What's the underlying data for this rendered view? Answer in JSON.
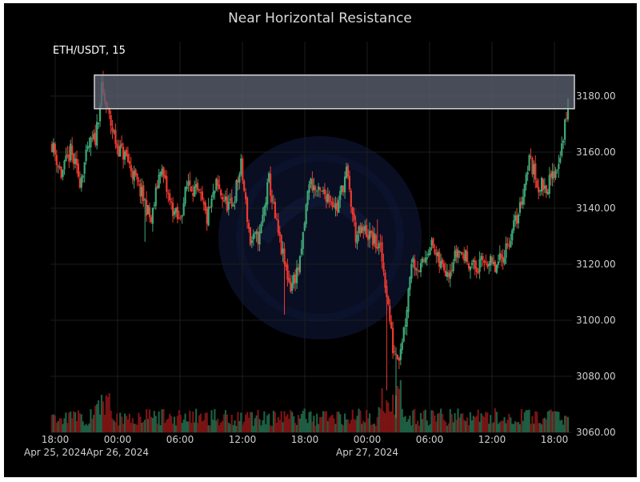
{
  "chart_data": {
    "type": "candlestick",
    "title": "Near Horizontal Resistance",
    "symbol_label": "ETH/USDT, 15",
    "y_axis": {
      "position": "right",
      "ylim": [
        3060,
        3200
      ],
      "ticks": [
        "3060.00",
        "3080.00",
        "3100.00",
        "3120.00",
        "3140.00",
        "3160.00",
        "3180.00"
      ]
    },
    "x_axis": {
      "tick_labels": [
        {
          "time": "18:00",
          "date": "Apr 25, 2024"
        },
        {
          "time": "00:00",
          "date": "Apr 26, 2024"
        },
        {
          "time": "06:00",
          "date": ""
        },
        {
          "time": "12:00",
          "date": ""
        },
        {
          "time": "18:00",
          "date": ""
        },
        {
          "time": "00:00",
          "date": "Apr 27, 2024"
        },
        {
          "time": "06:00",
          "date": ""
        },
        {
          "time": "12:00",
          "date": ""
        },
        {
          "time": "18:00",
          "date": ""
        }
      ]
    },
    "resistance_zone": {
      "low": 3175.5,
      "high": 3187.5,
      "fill": "#5a5f6e",
      "stroke": "#d0d0d0"
    },
    "price_path": [
      {
        "t": 0,
        "p": 3163
      },
      {
        "t": 6,
        "p": 3152
      },
      {
        "t": 12,
        "p": 3160
      },
      {
        "t": 18,
        "p": 3150
      },
      {
        "t": 24,
        "p": 3162
      },
      {
        "t": 28,
        "p": 3165
      },
      {
        "t": 32,
        "p": 3182
      },
      {
        "t": 34,
        "p": 3178
      },
      {
        "t": 38,
        "p": 3170
      },
      {
        "t": 42,
        "p": 3162
      },
      {
        "t": 48,
        "p": 3158
      },
      {
        "t": 54,
        "p": 3150
      },
      {
        "t": 60,
        "p": 3142
      },
      {
        "t": 64,
        "p": 3135
      },
      {
        "t": 70,
        "p": 3155
      },
      {
        "t": 76,
        "p": 3142
      },
      {
        "t": 82,
        "p": 3135
      },
      {
        "t": 88,
        "p": 3150
      },
      {
        "t": 96,
        "p": 3143
      },
      {
        "t": 100,
        "p": 3136
      },
      {
        "t": 106,
        "p": 3148
      },
      {
        "t": 112,
        "p": 3142
      },
      {
        "t": 116,
        "p": 3140
      },
      {
        "t": 122,
        "p": 3155
      },
      {
        "t": 128,
        "p": 3128
      },
      {
        "t": 134,
        "p": 3130
      },
      {
        "t": 140,
        "p": 3150
      },
      {
        "t": 144,
        "p": 3136
      },
      {
        "t": 150,
        "p": 3120
      },
      {
        "t": 154,
        "p": 3112
      },
      {
        "t": 160,
        "p": 3120
      },
      {
        "t": 166,
        "p": 3150
      },
      {
        "t": 172,
        "p": 3145
      },
      {
        "t": 178,
        "p": 3145
      },
      {
        "t": 184,
        "p": 3140
      },
      {
        "t": 190,
        "p": 3153
      },
      {
        "t": 196,
        "p": 3130
      },
      {
        "t": 202,
        "p": 3132
      },
      {
        "t": 208,
        "p": 3128
      },
      {
        "t": 212,
        "p": 3125
      },
      {
        "t": 216,
        "p": 3110
      },
      {
        "t": 220,
        "p": 3090
      },
      {
        "t": 224,
        "p": 3088
      },
      {
        "t": 228,
        "p": 3100
      },
      {
        "t": 232,
        "p": 3122
      },
      {
        "t": 238,
        "p": 3118
      },
      {
        "t": 244,
        "p": 3128
      },
      {
        "t": 250,
        "p": 3120
      },
      {
        "t": 256,
        "p": 3118
      },
      {
        "t": 262,
        "p": 3125
      },
      {
        "t": 268,
        "p": 3122
      },
      {
        "t": 274,
        "p": 3118
      },
      {
        "t": 280,
        "p": 3122
      },
      {
        "t": 286,
        "p": 3118
      },
      {
        "t": 290,
        "p": 3122
      },
      {
        "t": 296,
        "p": 3130
      },
      {
        "t": 302,
        "p": 3140
      },
      {
        "t": 308,
        "p": 3158
      },
      {
        "t": 314,
        "p": 3148
      },
      {
        "t": 320,
        "p": 3148
      },
      {
        "t": 326,
        "p": 3155
      },
      {
        "t": 330,
        "p": 3165
      },
      {
        "t": 333,
        "p": 3178
      }
    ],
    "colors": {
      "up": "#3fa877",
      "down": "#ee3a30",
      "volume_up": "#1e5e42",
      "volume_down": "#7a1414",
      "grid": "#1d1d1d",
      "background": "#000000"
    }
  }
}
